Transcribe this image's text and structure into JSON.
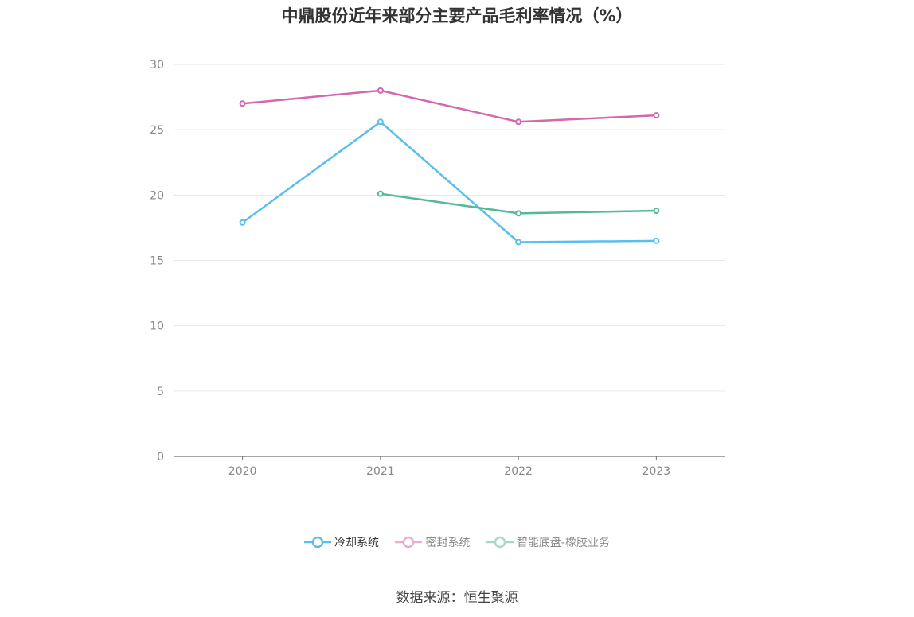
{
  "title": "中鼎股份近年来部分主要产品毛利率情况（%）",
  "source": "数据来源：恒生聚源",
  "chart_data": {
    "type": "line",
    "categories": [
      "2020",
      "2021",
      "2022",
      "2023"
    ],
    "ylim": [
      0,
      30
    ],
    "yticks": [
      "0",
      "5",
      "10",
      "15",
      "20",
      "25",
      "30"
    ],
    "grid": true,
    "legend_position": "bottom",
    "series": [
      {
        "name": "冷却系统",
        "color": "#5bbfee",
        "values": [
          17.9,
          25.6,
          16.4,
          16.5
        ]
      },
      {
        "name": "密封系统",
        "color": "#d467b0",
        "values": [
          27.0,
          28.0,
          25.6,
          26.1
        ]
      },
      {
        "name": "智能底盘-橡胶业务",
        "color": "#55b89a",
        "values": [
          null,
          20.1,
          18.6,
          18.8
        ]
      }
    ]
  }
}
